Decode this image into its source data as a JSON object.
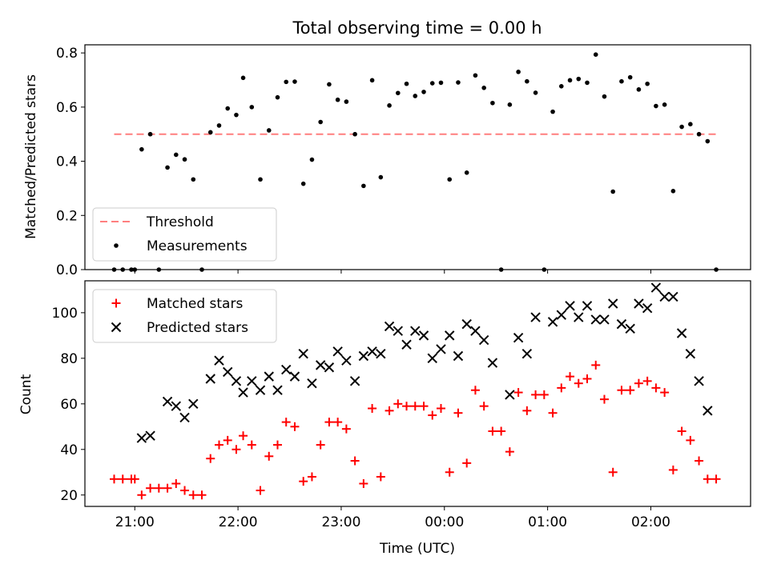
{
  "title": "Total observing time = 0.00 h",
  "colors": {
    "threshold": "#ff7f7f",
    "measurement": "#000000",
    "matched": "#ff0000",
    "predicted": "#000000"
  },
  "chart_data": [
    {
      "type": "scatter",
      "panel": "top",
      "ylabel": "Matched/Predicted stars",
      "ylim": [
        0,
        0.83
      ],
      "yticks": [
        "0.0",
        "0.2",
        "0.4",
        "0.6",
        "0.8"
      ],
      "xlim": [
        "20:31",
        "02:58"
      ],
      "threshold": {
        "name": "Threshold",
        "value": 0.5,
        "x_start": "20:48",
        "x_end": "02:39"
      },
      "legend": {
        "placement": "lower-left",
        "entries": [
          "Threshold",
          "Measurements"
        ]
      },
      "series": [
        {
          "name": "Measurements",
          "points": [
            [
              "20:48",
              0
            ],
            [
              "20:53",
              0
            ],
            [
              "20:58",
              0
            ],
            [
              "21:00",
              0
            ],
            [
              "21:04",
              0.444
            ],
            [
              "21:09",
              0.5
            ],
            [
              "21:14",
              0
            ],
            [
              "21:19",
              0.377
            ],
            [
              "21:24",
              0.424
            ],
            [
              "21:29",
              0.407
            ],
            [
              "21:34",
              0.333
            ],
            [
              "21:39",
              0
            ],
            [
              "21:44",
              0.507
            ],
            [
              "21:49",
              0.532
            ],
            [
              "21:54",
              0.595
            ],
            [
              "21:59",
              0.571
            ],
            [
              "22:03",
              0.708
            ],
            [
              "22:08",
              0.6
            ],
            [
              "22:13",
              0.333
            ],
            [
              "22:18",
              0.514
            ],
            [
              "22:23",
              0.636
            ],
            [
              "22:28",
              0.693
            ],
            [
              "22:33",
              0.694
            ],
            [
              "22:38",
              0.317
            ],
            [
              "22:43",
              0.406
            ],
            [
              "22:48",
              0.545
            ],
            [
              "22:53",
              0.684
            ],
            [
              "22:58",
              0.627
            ],
            [
              "23:03",
              0.62
            ],
            [
              "23:08",
              0.5
            ],
            [
              "23:13",
              0.309
            ],
            [
              "23:18",
              0.699
            ],
            [
              "23:23",
              0.341
            ],
            [
              "23:28",
              0.606
            ],
            [
              "23:33",
              0.652
            ],
            [
              "23:38",
              0.686
            ],
            [
              "23:43",
              0.641
            ],
            [
              "23:48",
              0.656
            ],
            [
              "23:53",
              0.688
            ],
            [
              "23:58",
              0.69
            ],
            [
              "00:03",
              0.333
            ],
            [
              "00:08",
              0.691
            ],
            [
              "00:13",
              0.358
            ],
            [
              "00:18",
              0.717
            ],
            [
              "00:23",
              0.671
            ],
            [
              "00:28",
              0.615
            ],
            [
              "00:33",
              0
            ],
            [
              "00:38",
              0.609
            ],
            [
              "00:43",
              0.73
            ],
            [
              "00:48",
              0.695
            ],
            [
              "00:53",
              0.653
            ],
            [
              "00:58",
              0
            ],
            [
              "01:03",
              0.583
            ],
            [
              "01:08",
              0.677
            ],
            [
              "01:13",
              0.699
            ],
            [
              "01:18",
              0.704
            ],
            [
              "01:23",
              0.69
            ],
            [
              "01:28",
              0.794
            ],
            [
              "01:33",
              0.639
            ],
            [
              "01:38",
              0.288
            ],
            [
              "01:43",
              0.695
            ],
            [
              "01:48",
              0.71
            ],
            [
              "01:53",
              0.665
            ],
            [
              "01:58",
              0.686
            ],
            [
              "02:03",
              0.604
            ],
            [
              "02:08",
              0.609
            ],
            [
              "02:13",
              0.29
            ],
            [
              "02:18",
              0.527
            ],
            [
              "02:23",
              0.537
            ],
            [
              "02:28",
              0.5
            ],
            [
              "02:33",
              0.474
            ],
            [
              "02:38",
              0
            ]
          ]
        }
      ]
    },
    {
      "type": "scatter",
      "panel": "bottom",
      "xlabel": "Time (UTC)",
      "ylabel": "Count",
      "ylim": [
        15,
        114
      ],
      "yticks": [
        "20",
        "40",
        "60",
        "80",
        "100"
      ],
      "xlim": [
        "20:31",
        "02:58"
      ],
      "xticks": [
        "21:00",
        "22:00",
        "23:00",
        "00:00",
        "01:00",
        "02:00"
      ],
      "legend": {
        "placement": "upper-left",
        "entries": [
          "Matched stars",
          "Predicted stars"
        ]
      },
      "series": [
        {
          "name": "Matched stars",
          "marker": "plus",
          "points": [
            [
              "20:48",
              27
            ],
            [
              "20:53",
              27
            ],
            [
              "20:58",
              27
            ],
            [
              "21:00",
              27
            ],
            [
              "21:04",
              20
            ],
            [
              "21:09",
              23
            ],
            [
              "21:14",
              23
            ],
            [
              "21:19",
              23
            ],
            [
              "21:24",
              25
            ],
            [
              "21:29",
              22
            ],
            [
              "21:34",
              20
            ],
            [
              "21:39",
              20
            ],
            [
              "21:44",
              36
            ],
            [
              "21:49",
              42
            ],
            [
              "21:54",
              44
            ],
            [
              "21:59",
              40
            ],
            [
              "22:03",
              46
            ],
            [
              "22:08",
              42
            ],
            [
              "22:13",
              22
            ],
            [
              "22:18",
              37
            ],
            [
              "22:23",
              42
            ],
            [
              "22:28",
              52
            ],
            [
              "22:33",
              50
            ],
            [
              "22:38",
              26
            ],
            [
              "22:43",
              28
            ],
            [
              "22:48",
              42
            ],
            [
              "22:53",
              52
            ],
            [
              "22:58",
              52
            ],
            [
              "23:03",
              49
            ],
            [
              "23:08",
              35
            ],
            [
              "23:13",
              25
            ],
            [
              "23:18",
              58
            ],
            [
              "23:23",
              28
            ],
            [
              "23:28",
              57
            ],
            [
              "23:33",
              60
            ],
            [
              "23:38",
              59
            ],
            [
              "23:43",
              59
            ],
            [
              "23:48",
              59
            ],
            [
              "23:53",
              55
            ],
            [
              "23:58",
              58
            ],
            [
              "00:03",
              30
            ],
            [
              "00:08",
              56
            ],
            [
              "00:13",
              34
            ],
            [
              "00:18",
              66
            ],
            [
              "00:23",
              59
            ],
            [
              "00:28",
              48
            ],
            [
              "00:33",
              48
            ],
            [
              "00:38",
              39
            ],
            [
              "00:43",
              65
            ],
            [
              "00:48",
              57
            ],
            [
              "00:53",
              64
            ],
            [
              "00:58",
              64
            ],
            [
              "01:03",
              56
            ],
            [
              "01:08",
              67
            ],
            [
              "01:13",
              72
            ],
            [
              "01:18",
              69
            ],
            [
              "01:23",
              71
            ],
            [
              "01:28",
              77
            ],
            [
              "01:33",
              62
            ],
            [
              "01:38",
              30
            ],
            [
              "01:43",
              66
            ],
            [
              "01:48",
              66
            ],
            [
              "01:53",
              69
            ],
            [
              "01:58",
              70
            ],
            [
              "02:03",
              67
            ],
            [
              "02:08",
              65
            ],
            [
              "02:13",
              31
            ],
            [
              "02:18",
              48
            ],
            [
              "02:23",
              44
            ],
            [
              "02:28",
              35
            ],
            [
              "02:33",
              27
            ],
            [
              "02:38",
              27
            ]
          ]
        },
        {
          "name": "Predicted stars",
          "marker": "x",
          "points": [
            [
              "21:04",
              45
            ],
            [
              "21:09",
              46
            ],
            [
              "21:19",
              61
            ],
            [
              "21:24",
              59
            ],
            [
              "21:29",
              54
            ],
            [
              "21:34",
              60
            ],
            [
              "21:44",
              71
            ],
            [
              "21:49",
              79
            ],
            [
              "21:54",
              74
            ],
            [
              "21:59",
              70
            ],
            [
              "22:03",
              65
            ],
            [
              "22:08",
              70
            ],
            [
              "22:13",
              66
            ],
            [
              "22:18",
              72
            ],
            [
              "22:23",
              66
            ],
            [
              "22:28",
              75
            ],
            [
              "22:33",
              72
            ],
            [
              "22:38",
              82
            ],
            [
              "22:43",
              69
            ],
            [
              "22:48",
              77
            ],
            [
              "22:53",
              76
            ],
            [
              "22:58",
              83
            ],
            [
              "23:03",
              79
            ],
            [
              "23:08",
              70
            ],
            [
              "23:13",
              81
            ],
            [
              "23:18",
              83
            ],
            [
              "23:23",
              82
            ],
            [
              "23:28",
              94
            ],
            [
              "23:33",
              92
            ],
            [
              "23:38",
              86
            ],
            [
              "23:43",
              92
            ],
            [
              "23:48",
              90
            ],
            [
              "23:53",
              80
            ],
            [
              "23:58",
              84
            ],
            [
              "00:03",
              90
            ],
            [
              "00:08",
              81
            ],
            [
              "00:13",
              95
            ],
            [
              "00:18",
              92
            ],
            [
              "00:23",
              88
            ],
            [
              "00:28",
              78
            ],
            [
              "00:38",
              64
            ],
            [
              "00:43",
              89
            ],
            [
              "00:48",
              82
            ],
            [
              "00:53",
              98
            ],
            [
              "01:03",
              96
            ],
            [
              "01:08",
              99
            ],
            [
              "01:13",
              103
            ],
            [
              "01:18",
              98
            ],
            [
              "01:23",
              103
            ],
            [
              "01:28",
              97
            ],
            [
              "01:33",
              97
            ],
            [
              "01:38",
              104
            ],
            [
              "01:43",
              95
            ],
            [
              "01:48",
              93
            ],
            [
              "01:53",
              104
            ],
            [
              "01:58",
              102
            ],
            [
              "02:03",
              111
            ],
            [
              "02:08",
              107
            ],
            [
              "02:13",
              107
            ],
            [
              "02:18",
              91
            ],
            [
              "02:23",
              82
            ],
            [
              "02:28",
              70
            ],
            [
              "02:33",
              57
            ]
          ]
        }
      ]
    }
  ]
}
